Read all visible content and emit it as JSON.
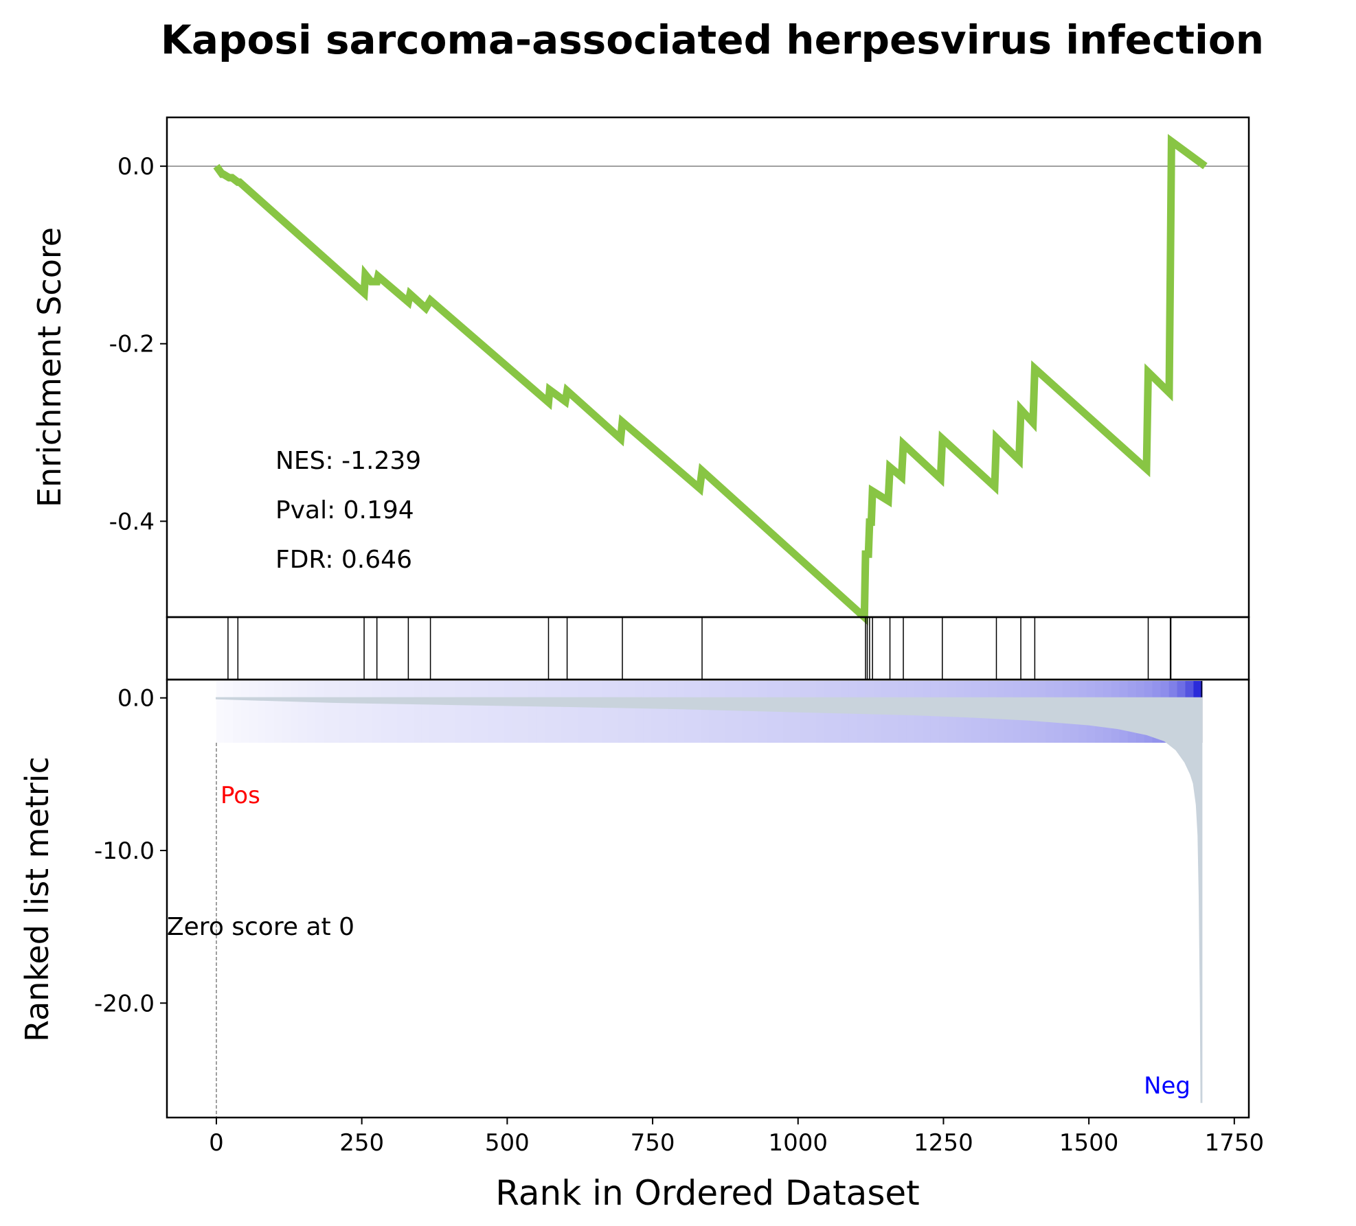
{
  "chart_data": {
    "type": "line",
    "title": "Kaposi sarcoma-associated herpesvirus infection",
    "xlabel": "Rank in Ordered Dataset",
    "xlim": [
      -85,
      1775
    ],
    "xticks": [
      0,
      250,
      500,
      750,
      1000,
      1250,
      1500,
      1750
    ],
    "n_genes": 1700,
    "enrichment": {
      "ylabel": "Enrichment Score",
      "ylim": [
        -0.508,
        0.055
      ],
      "yticks": [
        0.0,
        -0.2,
        -0.4
      ],
      "ytick_labels": [
        "0.0",
        "-0.2",
        "-0.4"
      ],
      "line_color": "#88C544",
      "points": [
        [
          0,
          0.0
        ],
        [
          10,
          -0.009
        ],
        [
          12,
          -0.009
        ],
        [
          22,
          -0.013
        ],
        [
          27,
          -0.013
        ],
        [
          37,
          -0.018
        ],
        [
          40,
          -0.018
        ],
        [
          254,
          -0.143
        ],
        [
          256,
          -0.122
        ],
        [
          266,
          -0.13
        ],
        [
          276,
          -0.13
        ],
        [
          278,
          -0.124
        ],
        [
          330,
          -0.153
        ],
        [
          333,
          -0.144
        ],
        [
          360,
          -0.16
        ],
        [
          368,
          -0.151
        ],
        [
          571,
          -0.266
        ],
        [
          573,
          -0.252
        ],
        [
          600,
          -0.265
        ],
        [
          603,
          -0.253
        ],
        [
          695,
          -0.307
        ],
        [
          698,
          -0.288
        ],
        [
          831,
          -0.363
        ],
        [
          835,
          -0.343
        ],
        [
          1114,
          -0.508
        ],
        [
          1116,
          -0.437
        ],
        [
          1121,
          -0.437
        ],
        [
          1123,
          -0.401
        ],
        [
          1126,
          -0.401
        ],
        [
          1128,
          -0.366
        ],
        [
          1155,
          -0.377
        ],
        [
          1158,
          -0.339
        ],
        [
          1178,
          -0.35
        ],
        [
          1181,
          -0.313
        ],
        [
          1245,
          -0.352
        ],
        [
          1248,
          -0.307
        ],
        [
          1338,
          -0.361
        ],
        [
          1341,
          -0.306
        ],
        [
          1380,
          -0.331
        ],
        [
          1383,
          -0.274
        ],
        [
          1404,
          -0.289
        ],
        [
          1407,
          -0.228
        ],
        [
          1599,
          -0.341
        ],
        [
          1602,
          -0.232
        ],
        [
          1638,
          -0.255
        ],
        [
          1640,
          -0.119
        ],
        [
          1642,
          0.028
        ],
        [
          1700,
          0.0
        ]
      ],
      "stats": {
        "nes": "NES: -1.239",
        "pval": "Pval: 0.194",
        "fdr": "FDR: 0.646"
      }
    },
    "hits": [
      20,
      37,
      254,
      276,
      330,
      368,
      571,
      603,
      698,
      835,
      1116,
      1119,
      1123,
      1128,
      1158,
      1181,
      1248,
      1341,
      1383,
      1407,
      1602,
      1640,
      1641
    ],
    "heatmap": {
      "colormap": "white-to-blue",
      "color_start": "#ffffff",
      "color_end": "#2b2bd9"
    },
    "ranked_metric": {
      "ylabel": "Ranked list metric",
      "ylim": [
        -27.5,
        1.2
      ],
      "yticks": [
        0.0,
        -10.0,
        -20.0
      ],
      "ytick_labels": [
        "0.0",
        "-10.0",
        "-20.0"
      ],
      "fill_color": "#c9d3dc",
      "curve": [
        [
          0,
          -0.05
        ],
        [
          200,
          -0.28
        ],
        [
          400,
          -0.42
        ],
        [
          600,
          -0.55
        ],
        [
          800,
          -0.7
        ],
        [
          1000,
          -0.9
        ],
        [
          1200,
          -1.1
        ],
        [
          1300,
          -1.25
        ],
        [
          1400,
          -1.45
        ],
        [
          1500,
          -1.75
        ],
        [
          1550,
          -2.0
        ],
        [
          1600,
          -2.4
        ],
        [
          1630,
          -2.8
        ],
        [
          1650,
          -3.4
        ],
        [
          1665,
          -4.2
        ],
        [
          1675,
          -5.0
        ],
        [
          1680,
          -5.6
        ],
        [
          1685,
          -7.0
        ],
        [
          1688,
          -9.0
        ],
        [
          1690,
          -13.0
        ],
        [
          1692,
          -20.0
        ],
        [
          1693,
          -26.5
        ],
        [
          1694,
          -26.5
        ],
        [
          1694,
          0.0
        ]
      ],
      "pos_label": "Pos",
      "neg_label": "Neg",
      "pos_color": "#ff0000",
      "neg_color": "#0000ff",
      "zero_text": "Zero score at 0"
    }
  }
}
